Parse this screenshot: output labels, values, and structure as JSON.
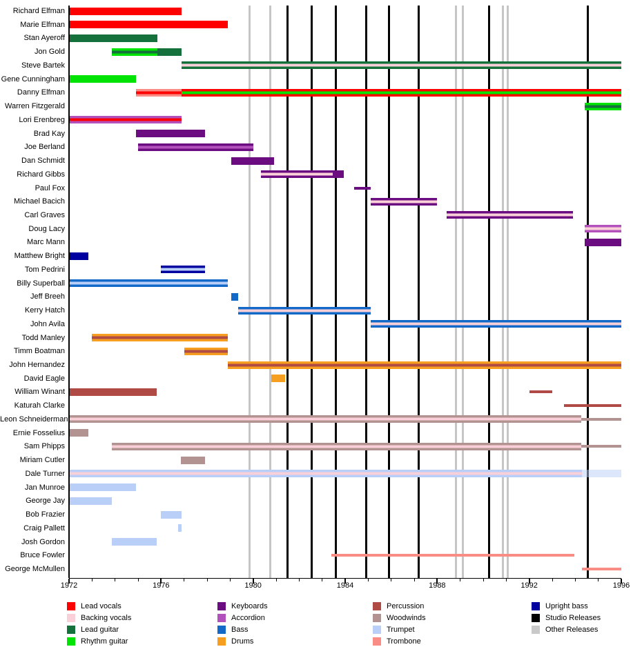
{
  "chart_data": {
    "type": "gantt",
    "title": "",
    "x_axis": {
      "start": 1972,
      "end": 1996,
      "tick_interval": 1,
      "label_interval": 4,
      "labels": [
        "1972",
        "1976",
        "1980",
        "1984",
        "1988",
        "1992",
        "1996"
      ]
    },
    "roles": {
      "lead_vocals": {
        "label": "Lead vocals",
        "color": "#FF0000"
      },
      "backing_vocals": {
        "label": "Backing vocals",
        "color": "#F9CFD8"
      },
      "lead_guitar": {
        "label": "Lead guitar",
        "color": "#15713B"
      },
      "rhythm_guitar": {
        "label": "Rhythm guitar",
        "color": "#00E305"
      },
      "keyboards": {
        "label": "Keyboards",
        "color": "#6B0C80"
      },
      "accordion": {
        "label": "Accordion",
        "color": "#B351BC"
      },
      "bass": {
        "label": "Bass",
        "color": "#1269C8"
      },
      "drums": {
        "label": "Drums",
        "color": "#F59E20"
      },
      "percussion": {
        "label": "Percussion",
        "color": "#AF4A45"
      },
      "woodwinds": {
        "label": "Woodwinds",
        "color": "#B29391"
      },
      "trumpet": {
        "label": "Trumpet",
        "color": "#BACFF8"
      },
      "trombone": {
        "label": "Trombone",
        "color": "#F98D86"
      },
      "upright_bass": {
        "label": "Upright bass",
        "color": "#0000A0"
      },
      "studio_releases": {
        "label": "Studio Releases",
        "color": "#000000"
      },
      "other_releases": {
        "label": "Other Releases",
        "color": "#C9C9C9"
      }
    },
    "members": [
      {
        "name": "Richard Elfman",
        "bars": [
          {
            "start": 1972,
            "end": 1976.9,
            "role": "lead_vocals"
          }
        ]
      },
      {
        "name": "Marie Elfman",
        "bars": [
          {
            "start": 1972,
            "end": 1978.9,
            "role": "lead_vocals"
          }
        ]
      },
      {
        "name": "Stan Ayeroff",
        "bars": [
          {
            "start": 1972,
            "end": 1975.85,
            "role": "lead_guitar"
          }
        ]
      },
      {
        "name": "Jon Gold",
        "bars": [
          {
            "start": 1973.85,
            "end": 1975.85,
            "role": "rhythm_guitar",
            "stripe": "lead_guitar"
          },
          {
            "start": 1975.85,
            "end": 1976.9,
            "role": "lead_guitar"
          }
        ]
      },
      {
        "name": "Steve Bartek",
        "bars": [
          {
            "start": 1976.9,
            "end": 1996,
            "role": "lead_guitar",
            "stripe": "backing_vocals"
          }
        ]
      },
      {
        "name": "Gene Cunningham",
        "bars": [
          {
            "start": 1972,
            "end": 1974.9,
            "role": "rhythm_guitar"
          }
        ]
      },
      {
        "name": "Danny Elfman",
        "bars": [
          {
            "start": 1974.9,
            "end": 1976.9,
            "role": "trombone",
            "stripe": "lead_vocals"
          },
          {
            "start": 1976.9,
            "end": 1996,
            "role": "lead_vocals",
            "stripe": "rhythm_guitar"
          }
        ]
      },
      {
        "name": "Warren Fitzgerald",
        "bars": [
          {
            "start": 1994.4,
            "end": 1996,
            "role": "rhythm_guitar",
            "stripe": "lead_guitar"
          }
        ]
      },
      {
        "name": "Lori Erenbreg",
        "bars": [
          {
            "start": 1972,
            "end": 1976.9,
            "role": "accordion",
            "stripe": "lead_vocals"
          }
        ]
      },
      {
        "name": "Brad Kay",
        "bars": [
          {
            "start": 1974.9,
            "end": 1977.9,
            "role": "keyboards"
          }
        ]
      },
      {
        "name": "Joe Berland",
        "bars": [
          {
            "start": 1975.0,
            "end": 1980.0,
            "role": "keyboards",
            "stripe": "accordion"
          }
        ]
      },
      {
        "name": "Dan Schmidt",
        "bars": [
          {
            "start": 1979.05,
            "end": 1980.9,
            "role": "keyboards"
          }
        ]
      },
      {
        "name": "Richard Gibbs",
        "bars": [
          {
            "start": 1980.35,
            "end": 1983.45,
            "role": "keyboards",
            "stripe": "backing_vocals"
          },
          {
            "start": 1983.45,
            "end": 1983.95,
            "role": "keyboards"
          }
        ]
      },
      {
        "name": "Paul Fox",
        "bars": [
          {
            "start": 1984.4,
            "end": 1985.1,
            "role": "keyboards",
            "thin": true
          }
        ]
      },
      {
        "name": "Michael Bacich",
        "bars": [
          {
            "start": 1985.1,
            "end": 1988.0,
            "role": "keyboards",
            "stripe": "backing_vocals"
          }
        ]
      },
      {
        "name": "Carl Graves",
        "bars": [
          {
            "start": 1988.4,
            "end": 1993.9,
            "role": "keyboards",
            "stripe": "backing_vocals"
          }
        ]
      },
      {
        "name": "Doug Lacy",
        "bars": [
          {
            "start": 1994.4,
            "end": 1996,
            "role": "accordion",
            "stripe": "backing_vocals"
          }
        ]
      },
      {
        "name": "Marc Mann",
        "bars": [
          {
            "start": 1994.4,
            "end": 1996,
            "role": "keyboards"
          }
        ]
      },
      {
        "name": "Matthew Bright",
        "bars": [
          {
            "start": 1972,
            "end": 1972.85,
            "role": "upright_bass"
          }
        ]
      },
      {
        "name": "Tom Pedrini",
        "bars": [
          {
            "start": 1976.0,
            "end": 1977.9,
            "role": "upright_bass",
            "stripe": "trumpet"
          }
        ]
      },
      {
        "name": "Billy Superball",
        "bars": [
          {
            "start": 1972,
            "end": 1978.9,
            "role": "bass",
            "stripe": "trumpet"
          }
        ]
      },
      {
        "name": "Jeff Breeh",
        "bars": [
          {
            "start": 1979.05,
            "end": 1979.35,
            "role": "bass"
          }
        ]
      },
      {
        "name": "Kerry Hatch",
        "bars": [
          {
            "start": 1979.35,
            "end": 1985.1,
            "role": "bass",
            "stripe": "backing_vocals"
          }
        ]
      },
      {
        "name": "John Avila",
        "bars": [
          {
            "start": 1985.1,
            "end": 1996,
            "role": "bass",
            "stripe": "backing_vocals"
          }
        ]
      },
      {
        "name": "Todd Manley",
        "bars": [
          {
            "start": 1973.0,
            "end": 1978.9,
            "role": "drums",
            "stripe": "percussion"
          }
        ]
      },
      {
        "name": "Timm Boatman",
        "bars": [
          {
            "start": 1977.0,
            "end": 1978.9,
            "role": "drums",
            "stripe": "percussion"
          }
        ]
      },
      {
        "name": "John Hernandez",
        "bars": [
          {
            "start": 1978.9,
            "end": 1996,
            "role": "drums",
            "stripe": "percussion"
          }
        ]
      },
      {
        "name": "David Eagle",
        "bars": [
          {
            "start": 1980.8,
            "end": 1981.4,
            "role": "drums"
          }
        ]
      },
      {
        "name": "William Winant",
        "bars": [
          {
            "start": 1972,
            "end": 1975.8,
            "role": "percussion"
          },
          {
            "start": 1992.0,
            "end": 1993.0,
            "role": "percussion",
            "thin": true
          }
        ]
      },
      {
        "name": "Katurah Clarke",
        "bars": [
          {
            "start": 1993.5,
            "end": 1996,
            "role": "percussion",
            "thin": true
          }
        ]
      },
      {
        "name": "Leon Schneiderman",
        "bars": [
          {
            "start": 1972,
            "end": 1994.25,
            "role": "woodwinds",
            "stripe": "backing_vocals"
          },
          {
            "start": 1994.25,
            "end": 1996,
            "role": "woodwinds",
            "thin": true
          }
        ]
      },
      {
        "name": "Ernie Fosselius",
        "bars": [
          {
            "start": 1972,
            "end": 1972.85,
            "role": "woodwinds"
          }
        ]
      },
      {
        "name": "Sam Phipps",
        "bars": [
          {
            "start": 1973.85,
            "end": 1994.25,
            "role": "woodwinds",
            "stripe": "backing_vocals"
          },
          {
            "start": 1994.25,
            "end": 1996,
            "role": "woodwinds",
            "thin": true
          }
        ]
      },
      {
        "name": "Miriam Cutler",
        "bars": [
          {
            "start": 1976.85,
            "end": 1977.9,
            "role": "woodwinds"
          }
        ]
      },
      {
        "name": "Dale Turner",
        "bars": [
          {
            "start": 1972,
            "end": 1994.3,
            "role": "trumpet",
            "stripe": "backing_vocals"
          },
          {
            "start": 1994.3,
            "end": 1996,
            "role": "trumpet",
            "faded": true
          }
        ]
      },
      {
        "name": "Jan Munroe",
        "bars": [
          {
            "start": 1972,
            "end": 1974.9,
            "role": "trumpet"
          }
        ]
      },
      {
        "name": "George Jay",
        "bars": [
          {
            "start": 1972,
            "end": 1973.85,
            "role": "trumpet"
          }
        ]
      },
      {
        "name": "Bob Frazier",
        "bars": [
          {
            "start": 1976.0,
            "end": 1976.9,
            "role": "trumpet"
          }
        ]
      },
      {
        "name": "Craig Pallett",
        "bars": [
          {
            "start": 1976.75,
            "end": 1976.9,
            "role": "trumpet"
          }
        ]
      },
      {
        "name": "Josh Gordon",
        "bars": [
          {
            "start": 1973.85,
            "end": 1975.8,
            "role": "trumpet"
          }
        ]
      },
      {
        "name": "Bruce Fowler",
        "bars": [
          {
            "start": 1983.4,
            "end": 1993.95,
            "role": "trombone",
            "thin": true
          }
        ]
      },
      {
        "name": "George McMullen",
        "bars": [
          {
            "start": 1994.3,
            "end": 1996,
            "role": "trombone",
            "thin": true
          }
        ]
      }
    ],
    "releases": {
      "studio": [
        1981.5,
        1982.55,
        1983.6,
        1984.9,
        1985.9,
        1987.2,
        1990.25,
        1994.55
      ],
      "other": [
        1979.85,
        1980.75,
        1988.8,
        1989.1,
        1990.85,
        1991.05
      ]
    },
    "legend": {
      "columns": [
        [
          "lead_vocals",
          "backing_vocals",
          "lead_guitar",
          "rhythm_guitar"
        ],
        [
          "keyboards",
          "accordion",
          "bass",
          "drums"
        ],
        [
          "percussion",
          "woodwinds",
          "trumpet",
          "trombone"
        ],
        [
          "upright_bass",
          "studio_releases",
          "other_releases"
        ]
      ]
    }
  }
}
